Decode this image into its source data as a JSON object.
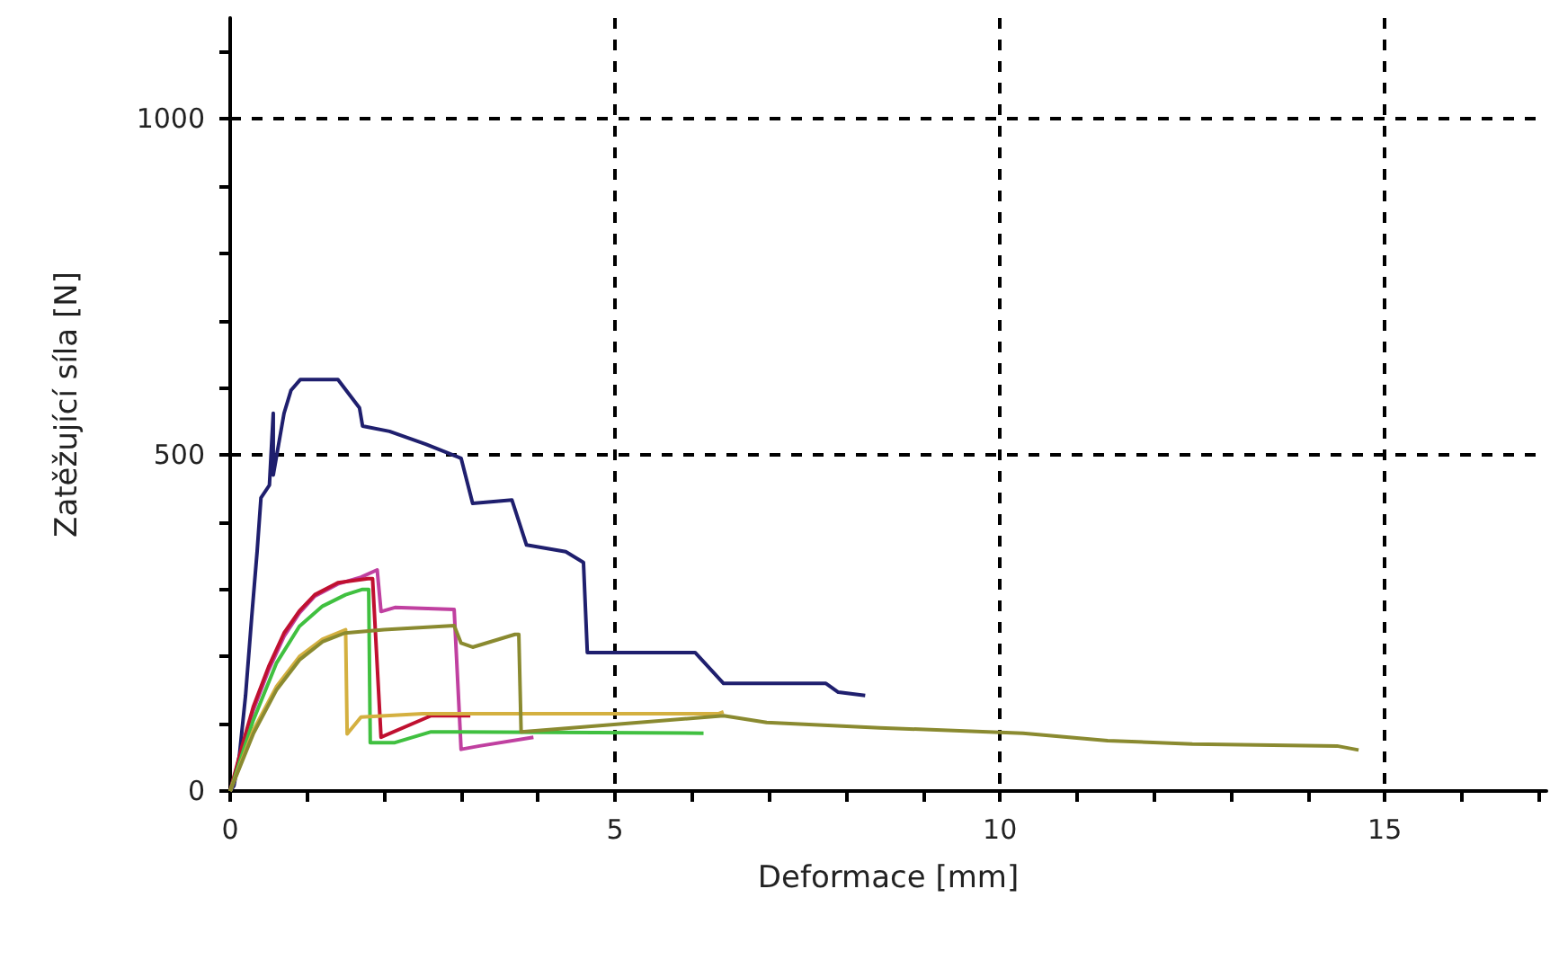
{
  "chart_data": {
    "type": "line",
    "xlabel": "Deformace [mm]",
    "ylabel": "Zatěžující síla [N]",
    "xlim": [
      0,
      17.1
    ],
    "ylim": [
      0,
      1150
    ],
    "xticks": [
      0,
      {
        "value": 1,
        "label": null
      },
      {
        "value": 2,
        "label": null
      },
      {
        "value": 3,
        "label": null
      },
      {
        "value": 4,
        "label": null
      },
      5,
      {
        "value": 6,
        "label": null
      },
      {
        "value": 7,
        "label": null
      },
      {
        "value": 8,
        "label": null
      },
      {
        "value": 9,
        "label": null
      },
      10,
      {
        "value": 11,
        "label": null
      },
      {
        "value": 12,
        "label": null
      },
      {
        "value": 13,
        "label": null
      },
      {
        "value": 14,
        "label": null
      },
      15,
      {
        "value": 16,
        "label": null
      },
      {
        "value": 17,
        "label": null
      }
    ],
    "yticks": [
      0,
      {
        "value": 100,
        "label": null
      },
      {
        "value": 200,
        "label": null
      },
      {
        "value": 300,
        "label": null
      },
      {
        "value": 400,
        "label": null
      },
      500,
      {
        "value": 600,
        "label": null
      },
      {
        "value": 700,
        "label": null
      },
      {
        "value": 800,
        "label": null
      },
      {
        "value": 900,
        "label": null
      },
      1000,
      {
        "value": 1100,
        "label": null
      }
    ],
    "grid": true,
    "marker": "none",
    "line_style": "solid",
    "series": [
      {
        "color": "#1f1f6e",
        "x": [
          0,
          0.05,
          0.12,
          0.2,
          0.28,
          0.35,
          0.4,
          0.51,
          0.56,
          0.56,
          0.7,
          0.79,
          0.91,
          1.4,
          1.68,
          1.72,
          2.07,
          2.54,
          3.0,
          3.15,
          3.66,
          3.85,
          4.36,
          4.59,
          4.64,
          6.04,
          6.41,
          7.74,
          7.9,
          8.25
        ],
        "values": [
          0,
          8,
          53,
          142,
          259,
          356,
          436,
          455,
          562,
          470,
          562,
          596,
          612,
          612,
          570,
          543,
          535,
          516,
          495,
          428,
          433,
          366,
          356,
          340,
          206,
          206,
          160,
          160,
          147,
          142
        ]
      },
      {
        "color": "#c040a0",
        "x": [
          0,
          0.15,
          0.3,
          0.5,
          0.7,
          0.9,
          1.1,
          1.4,
          1.7,
          1.91,
          1.96,
          2.14,
          2.91,
          3.0,
          3.24,
          3.94
        ],
        "values": [
          0,
          60,
          120,
          180,
          230,
          265,
          290,
          308,
          318,
          329,
          267,
          273,
          270,
          62,
          67,
          80
        ]
      },
      {
        "color": "#c01030",
        "x": [
          0,
          0.15,
          0.3,
          0.5,
          0.7,
          0.9,
          1.1,
          1.4,
          1.79,
          1.85,
          1.96,
          2.61,
          3.12
        ],
        "values": [
          0,
          65,
          125,
          185,
          235,
          268,
          292,
          310,
          316,
          316,
          80,
          112,
          112
        ]
      },
      {
        "color": "#40c040",
        "x": [
          0,
          0.3,
          0.6,
          0.9,
          1.2,
          1.5,
          1.72,
          1.8,
          1.82,
          2.14,
          2.61,
          6.15
        ],
        "values": [
          0,
          105,
          190,
          245,
          275,
          292,
          300,
          300,
          72,
          72,
          88,
          86
        ]
      },
      {
        "color": "#d4b040",
        "x": [
          0,
          0.3,
          0.6,
          0.9,
          1.2,
          1.5,
          1.52,
          1.7,
          2.5,
          6.34,
          6.41
        ],
        "values": [
          0,
          90,
          155,
          200,
          226,
          240,
          85,
          110,
          115,
          115,
          118
        ]
      },
      {
        "color": "#8a8a30",
        "x": [
          0,
          0.3,
          0.6,
          0.9,
          1.2,
          1.49,
          2.0,
          2.91,
          3.0,
          3.15,
          3.7,
          3.75,
          3.78,
          6.41,
          6.97,
          8.44,
          10.3,
          11.4,
          12.5,
          14.38,
          14.66
        ],
        "values": [
          0,
          85,
          150,
          195,
          222,
          235,
          240,
          246,
          220,
          214,
          233,
          233,
          88,
          112,
          102,
          94,
          86,
          75,
          70,
          67,
          61
        ]
      }
    ]
  }
}
